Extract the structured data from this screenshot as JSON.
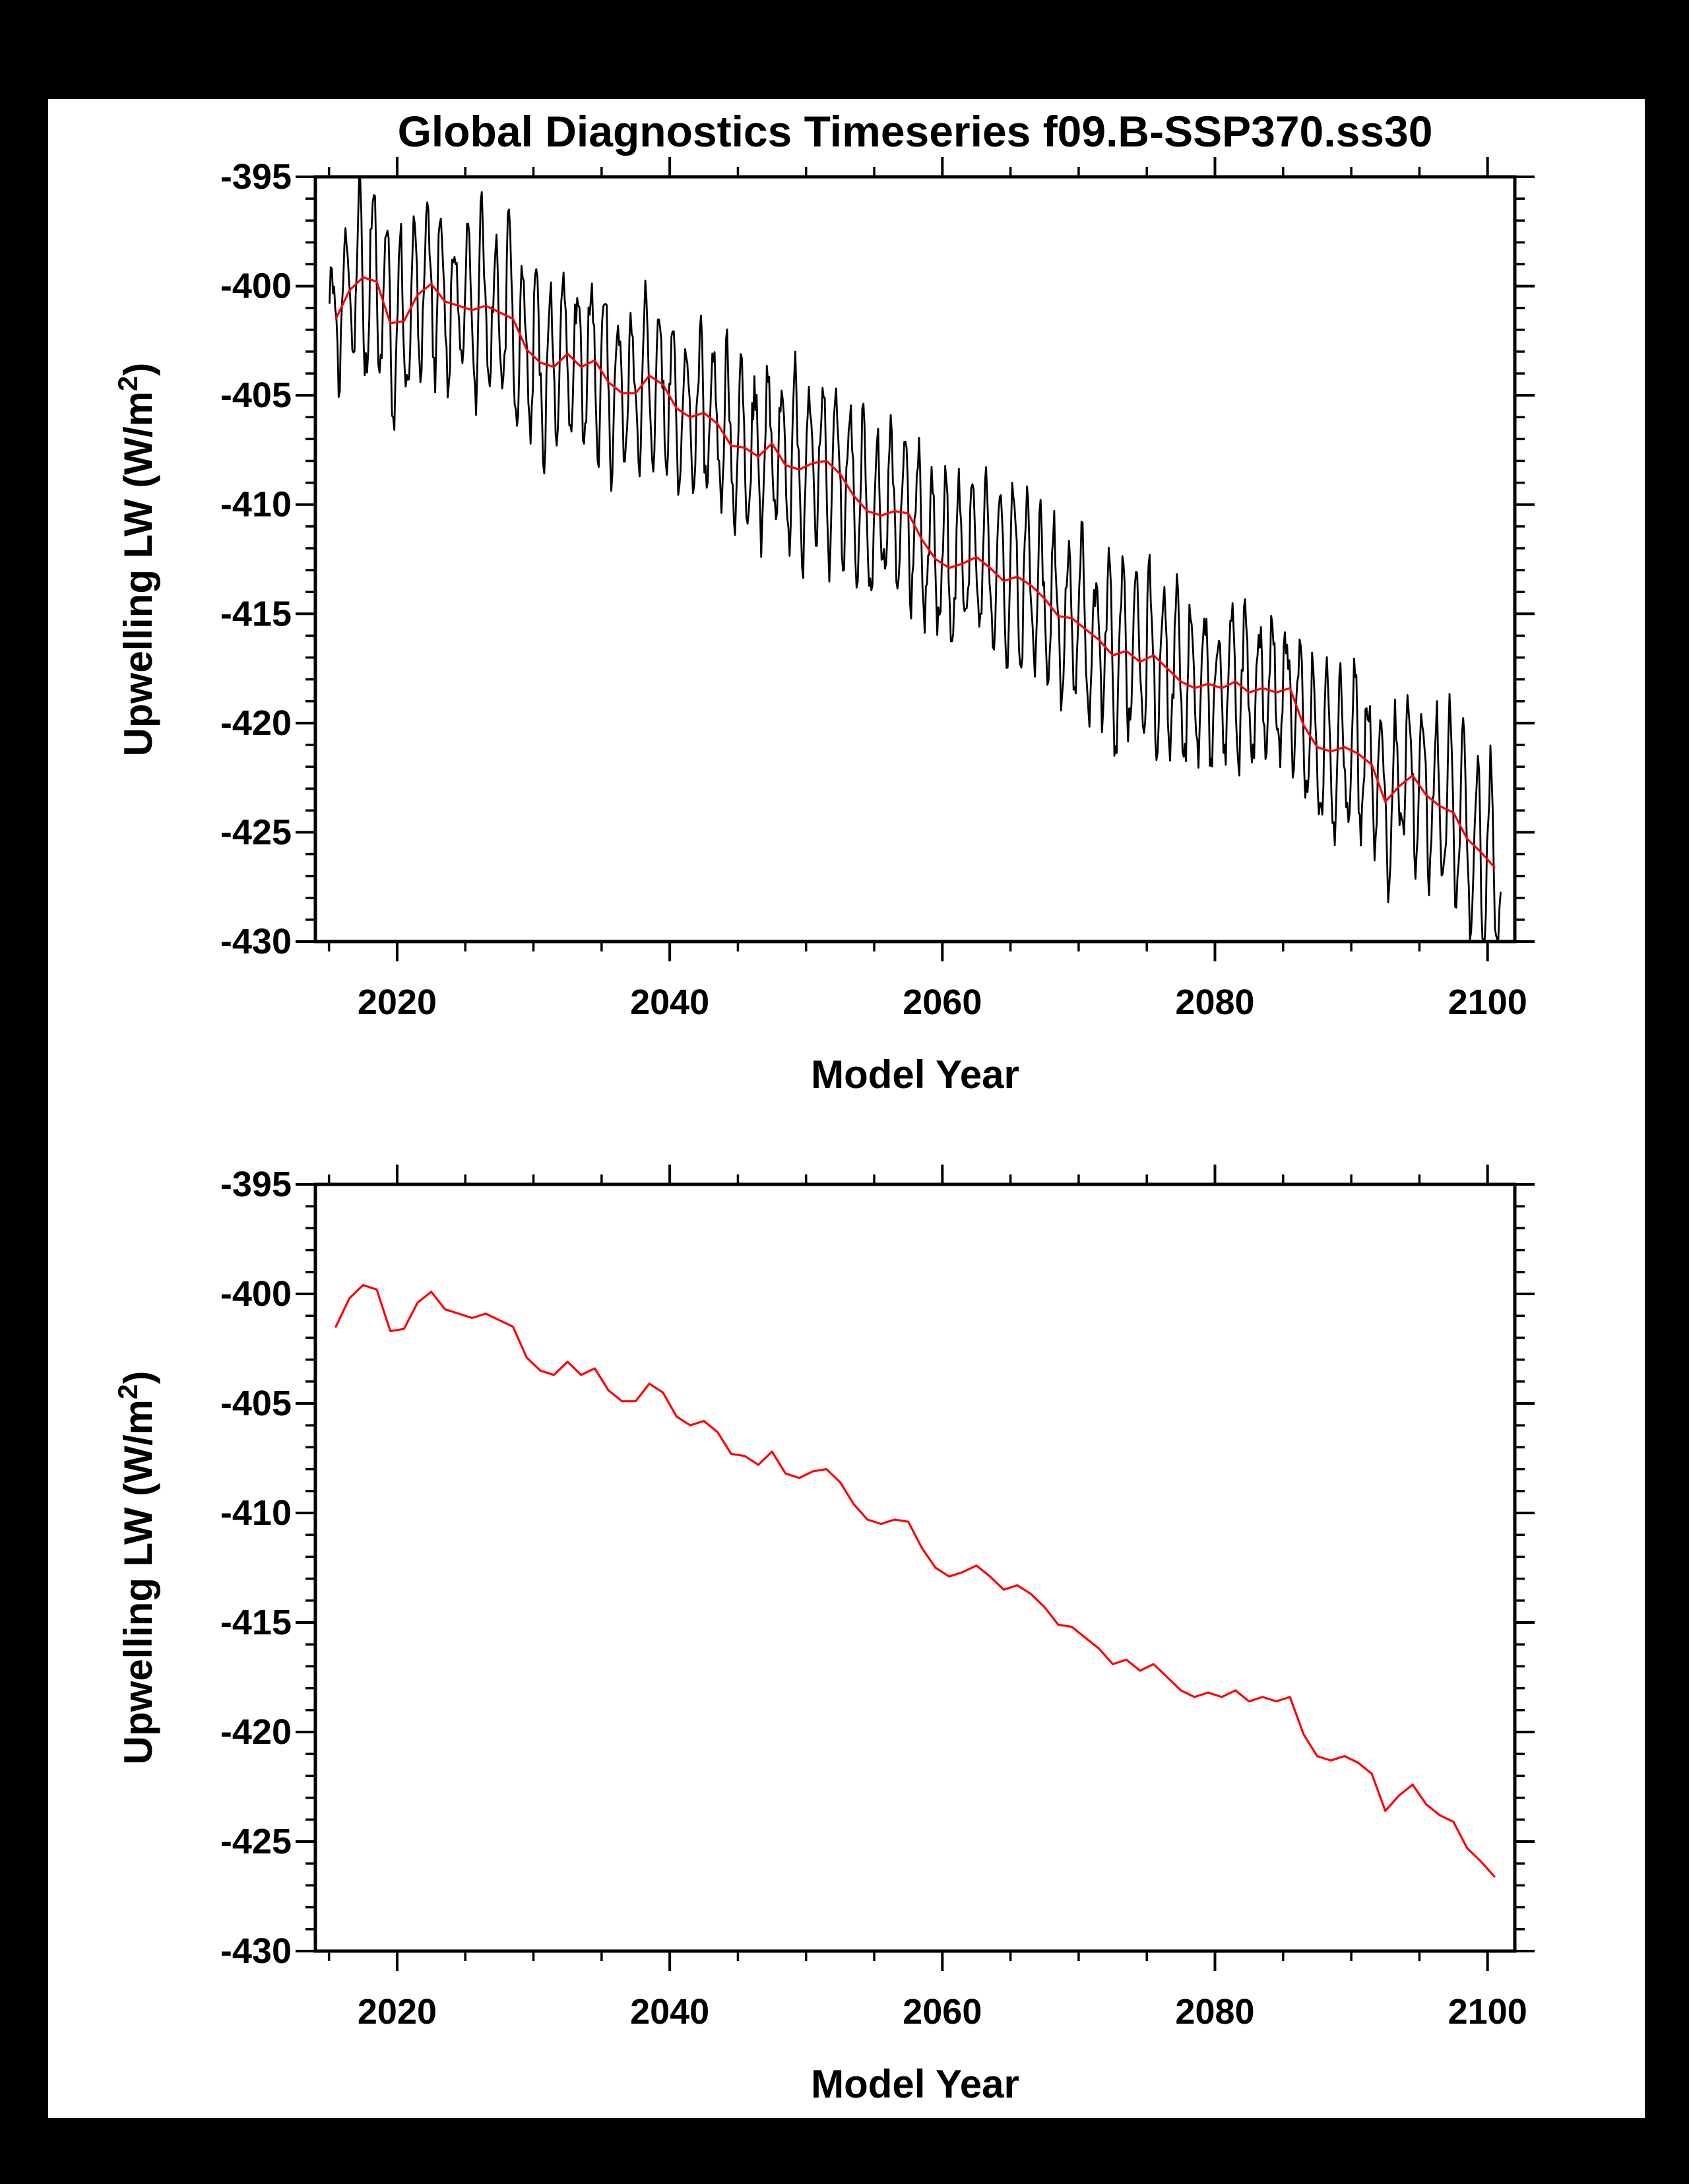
{
  "page": {
    "background_color": "#000000",
    "paper_color": "#ffffff"
  },
  "chart_data": [
    {
      "type": "line",
      "title": "Global Diagnostics Timeseries f09.B-SSP370.ss30",
      "xlabel": "Model Year",
      "ylabel": "Upwelling LW (W/m2)",
      "ylabel_parts": [
        "Upwelling LW (W/m",
        "2",
        ")"
      ],
      "xlim": [
        2014,
        2102
      ],
      "ylim": [
        -430,
        -395
      ],
      "xticks_major": [
        2020,
        2040,
        2060,
        2080,
        2100
      ],
      "xticks_minor_step": 5,
      "yticks_major": [
        -395,
        -400,
        -405,
        -410,
        -415,
        -420,
        -425,
        -430
      ],
      "yticks_minor_step": 1,
      "grid": false,
      "legend": false,
      "series": [
        {
          "name": "monthly mean",
          "color": "#000000",
          "derivation": "monthly values oscillating seasonally around the annual mean",
          "seasonal_amplitude": 3.4,
          "noise_amplitude": 0.9
        },
        {
          "name": "annual mean",
          "color": "#ff0000",
          "x_start": 2015,
          "x_step": 1,
          "values": [
            -401.5,
            -400.2,
            -399.6,
            -399.8,
            -401.7,
            -401.6,
            -400.4,
            -399.9,
            -400.7,
            -400.9,
            -401.1,
            -400.9,
            -401.2,
            -401.5,
            -402.9,
            -403.5,
            -403.7,
            -403.1,
            -403.7,
            -403.4,
            -404.4,
            -404.9,
            -404.9,
            -404.1,
            -404.5,
            -405.6,
            -406.0,
            -405.8,
            -406.3,
            -407.3,
            -407.4,
            -407.8,
            -407.2,
            -408.2,
            -408.4,
            -408.1,
            -408.0,
            -408.6,
            -409.6,
            -410.3,
            -410.5,
            -410.3,
            -410.4,
            -411.6,
            -412.5,
            -412.9,
            -412.7,
            -412.4,
            -412.9,
            -413.5,
            -413.3,
            -413.7,
            -414.3,
            -415.1,
            -415.2,
            -415.7,
            -416.2,
            -416.9,
            -416.7,
            -417.2,
            -416.9,
            -417.5,
            -418.1,
            -418.4,
            -418.2,
            -418.4,
            -418.1,
            -418.6,
            -418.4,
            -418.6,
            -418.4,
            -420.1,
            -421.1,
            -421.3,
            -421.1,
            -421.4,
            -421.9,
            -423.6,
            -422.9,
            -422.4,
            -423.3,
            -423.8,
            -424.1,
            -425.3,
            -425.9,
            -426.6
          ]
        }
      ]
    },
    {
      "type": "line",
      "title": "",
      "xlabel": "Model Year",
      "ylabel": "Upwelling LW (W/m2)",
      "ylabel_parts": [
        "Upwelling LW (W/m",
        "2",
        ")"
      ],
      "xlim": [
        2014,
        2102
      ],
      "ylim": [
        -430,
        -395
      ],
      "xticks_major": [
        2020,
        2040,
        2060,
        2080,
        2100
      ],
      "xticks_minor_step": 5,
      "yticks_major": [
        -395,
        -400,
        -405,
        -410,
        -415,
        -420,
        -425,
        -430
      ],
      "yticks_minor_step": 1,
      "grid": false,
      "legend": false,
      "series": [
        {
          "name": "annual mean",
          "color": "#ff0000",
          "x_start": 2015,
          "x_step": 1,
          "values": [
            -401.5,
            -400.2,
            -399.6,
            -399.8,
            -401.7,
            -401.6,
            -400.4,
            -399.9,
            -400.7,
            -400.9,
            -401.1,
            -400.9,
            -401.2,
            -401.5,
            -402.9,
            -403.5,
            -403.7,
            -403.1,
            -403.7,
            -403.4,
            -404.4,
            -404.9,
            -404.9,
            -404.1,
            -404.5,
            -405.6,
            -406.0,
            -405.8,
            -406.3,
            -407.3,
            -407.4,
            -407.8,
            -407.2,
            -408.2,
            -408.4,
            -408.1,
            -408.0,
            -408.6,
            -409.6,
            -410.3,
            -410.5,
            -410.3,
            -410.4,
            -411.6,
            -412.5,
            -412.9,
            -412.7,
            -412.4,
            -412.9,
            -413.5,
            -413.3,
            -413.7,
            -414.3,
            -415.1,
            -415.2,
            -415.7,
            -416.2,
            -416.9,
            -416.7,
            -417.2,
            -416.9,
            -417.5,
            -418.1,
            -418.4,
            -418.2,
            -418.4,
            -418.1,
            -418.6,
            -418.4,
            -418.6,
            -418.4,
            -420.1,
            -421.1,
            -421.3,
            -421.1,
            -421.4,
            -421.9,
            -423.6,
            -422.9,
            -422.4,
            -423.3,
            -423.8,
            -424.1,
            -425.3,
            -425.9,
            -426.6
          ]
        }
      ]
    }
  ]
}
